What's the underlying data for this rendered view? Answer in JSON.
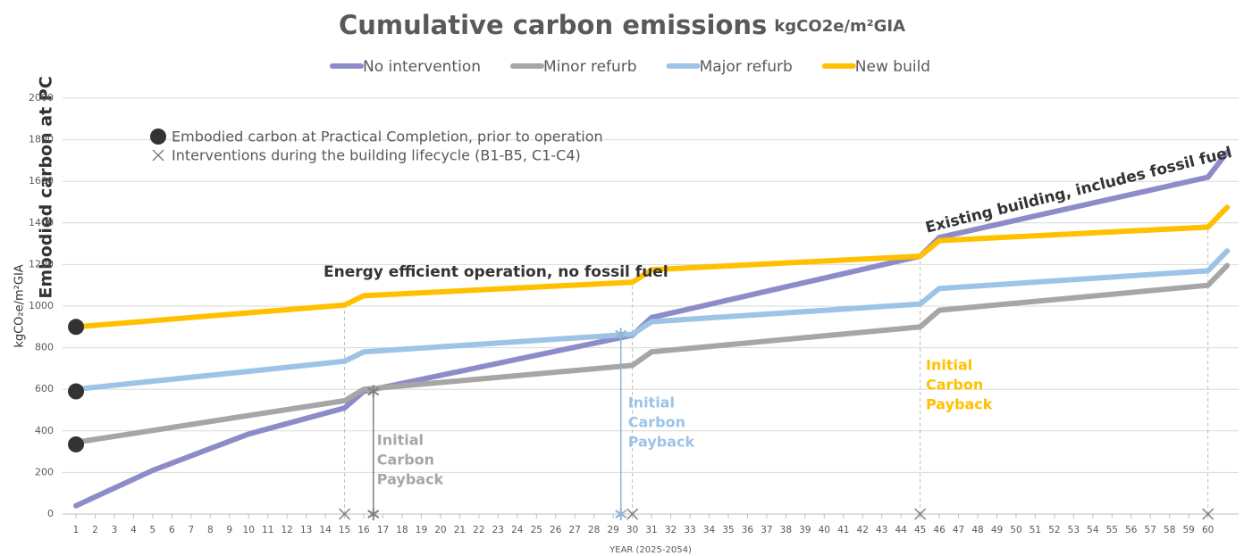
{
  "chart_data": {
    "type": "line",
    "title": "Cumulative carbon emissions",
    "title_unit": "kgCO2e/m²GIA",
    "y_label": "kgCO₂e/m²GIA",
    "y_side_label": "Embodied carbon at PC",
    "x_label": "YEAR (2025-2054)",
    "x": [
      1,
      5,
      10,
      15,
      16,
      30,
      31,
      45,
      46,
      60,
      61
    ],
    "series": [
      {
        "name": "No intervention",
        "color": "#8e8cc8",
        "values": [
          40,
          210,
          385,
          510,
          590,
          860,
          945,
          1240,
          1330,
          1620,
          1740
        ]
      },
      {
        "name": "Minor refurb",
        "color": "#a6a6a6",
        "values": [
          345,
          402,
          474,
          545,
          600,
          715,
          780,
          900,
          980,
          1100,
          1195
        ]
      },
      {
        "name": "Major refurb",
        "color": "#9dc3e6",
        "values": [
          600,
          639,
          686,
          735,
          780,
          865,
          925,
          1010,
          1085,
          1170,
          1265
        ]
      },
      {
        "name": "New build",
        "color": "#ffc000",
        "values": [
          900,
          930,
          968,
          1005,
          1050,
          1115,
          1175,
          1240,
          1315,
          1380,
          1475
        ]
      }
    ],
    "embodied_markers": [
      {
        "x": 1,
        "y": 900
      },
      {
        "x": 1,
        "y": 590
      },
      {
        "x": 1,
        "y": 335
      }
    ],
    "interventions": [
      15,
      30,
      45,
      60
    ],
    "paybacks": [
      {
        "x": 16.5,
        "y": 590,
        "color": "#a6a6a6",
        "label": [
          "Initial",
          "Carbon",
          "Payback"
        ]
      },
      {
        "x": 29.4,
        "y": 865,
        "color": "#9dc3e6",
        "label": [
          "Initial",
          "Carbon",
          "Payback"
        ]
      }
    ],
    "payback_note": {
      "color": "#ffc000",
      "label": [
        "Initial",
        "Carbon",
        "Payback"
      ]
    },
    "notes": [
      "Embodied carbon at Practical Completion, prior to operation",
      "Interventions during the building lifecycle (B1-B5, C1-C4)"
    ],
    "annotations": [
      "Energy efficient operation, no fossil fuel",
      "Existing building, includes fossil fuel"
    ],
    "xlim": [
      0.3,
      61.6
    ],
    "ylim": [
      0,
      2000
    ],
    "yticks": [
      0,
      200,
      400,
      600,
      800,
      1000,
      1200,
      1400,
      1600,
      1800,
      2000
    ],
    "xticks": [
      1,
      2,
      3,
      4,
      5,
      6,
      7,
      8,
      9,
      10,
      11,
      12,
      13,
      14,
      15,
      16,
      17,
      18,
      19,
      20,
      21,
      22,
      23,
      24,
      25,
      26,
      27,
      28,
      29,
      30,
      31,
      32,
      33,
      34,
      35,
      36,
      37,
      38,
      39,
      40,
      41,
      42,
      43,
      44,
      45,
      46,
      47,
      48,
      49,
      50,
      51,
      52,
      53,
      54,
      55,
      56,
      57,
      58,
      59,
      60
    ],
    "grid": true
  }
}
